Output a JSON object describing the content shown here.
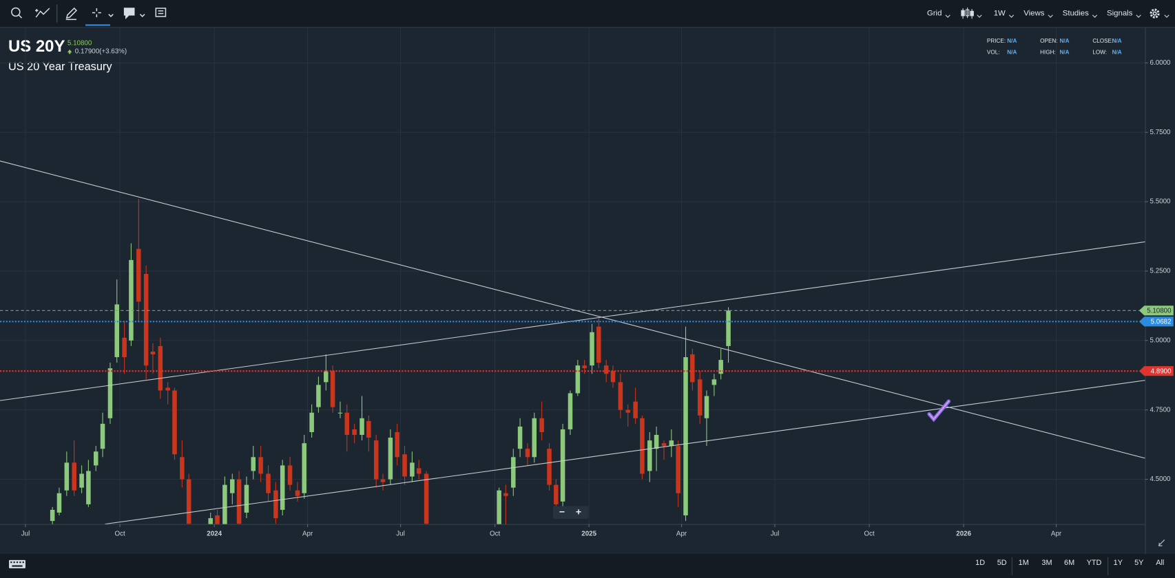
{
  "toolbar": {
    "right": [
      "Grid",
      "1W",
      "Views",
      "Studies",
      "Signals"
    ]
  },
  "header": {
    "symbol": "US 20Y",
    "last": "5.10800",
    "change": "0.17900(+3.63%)",
    "name": "US 20 Year Treasury"
  },
  "info": [
    {
      "label": "PRICE:",
      "value": "N/A"
    },
    {
      "label": "OPEN:",
      "value": "N/A"
    },
    {
      "label": "CLOSE:",
      "value": "N/A"
    },
    {
      "label": "VOL:",
      "value": "N/A"
    },
    {
      "label": "HIGH:",
      "value": "N/A"
    },
    {
      "label": "LOW:",
      "value": "N/A"
    }
  ],
  "zoom": [
    "−",
    "+"
  ],
  "ranges": [
    "1D",
    "5D",
    "1M",
    "3M",
    "6M",
    "YTD",
    "1Y",
    "5Y",
    "All"
  ],
  "chart_data": {
    "type": "candlestick",
    "up_color": "#8cc97c",
    "down_color": "#c9361d",
    "grid": true,
    "xlim": [
      2023.428,
      2026.484
    ],
    "ylim": [
      4.3387,
      6.1268
    ],
    "xticks": [
      {
        "value": 2023.496,
        "label": "Jul"
      },
      {
        "value": 2023.748,
        "label": "Oct"
      },
      {
        "value": 2024.0,
        "label": "2024"
      },
      {
        "value": 2024.249,
        "label": "Apr"
      },
      {
        "value": 2024.497,
        "label": "Jul"
      },
      {
        "value": 2024.749,
        "label": "Oct"
      },
      {
        "value": 2025.0,
        "label": "2025"
      },
      {
        "value": 2025.247,
        "label": "Apr"
      },
      {
        "value": 2025.496,
        "label": "Jul"
      },
      {
        "value": 2025.748,
        "label": "Oct"
      },
      {
        "value": 2026.0,
        "label": "2026"
      },
      {
        "value": 2026.247,
        "label": "Apr"
      }
    ],
    "yticks": [
      {
        "value": 4.5,
        "label": "4.5000"
      },
      {
        "value": 4.75,
        "label": "4.7500"
      },
      {
        "value": 5.0,
        "label": "5.0000"
      },
      {
        "value": 5.25,
        "label": "5.2500"
      },
      {
        "value": 5.5,
        "label": "5.5000"
      },
      {
        "value": 5.75,
        "label": "5.7500"
      },
      {
        "value": 6.0,
        "label": "6.0000"
      }
    ],
    "price_lines": [
      {
        "value": 5.108,
        "label": "5.10800",
        "color": "#8cc97c",
        "style": "dashed"
      },
      {
        "value": 5.0682,
        "label": "5.0682",
        "color": "#2a8be0",
        "style": "dotted"
      },
      {
        "value": 4.89,
        "label": "4.8900",
        "color": "#e0342e",
        "style": "dotted"
      }
    ],
    "x": [
      2023.568,
      2023.586,
      2023.606,
      2023.626,
      2023.646,
      2023.664,
      2023.684,
      2023.702,
      2023.722,
      2023.74,
      2023.76,
      2023.778,
      2023.798,
      2023.818,
      2023.836,
      2023.856,
      2023.876,
      2023.894,
      2023.914,
      2023.932,
      2023.99,
      2024.008,
      2024.028,
      2024.048,
      2024.066,
      2024.086,
      2024.104,
      2024.124,
      2024.144,
      2024.164,
      2024.182,
      2024.202,
      2024.222,
      2024.24,
      2024.26,
      2024.278,
      2024.298,
      2024.316,
      2024.336,
      2024.354,
      2024.374,
      2024.394,
      2024.412,
      2024.432,
      2024.45,
      2024.47,
      2024.488,
      2024.508,
      2024.528,
      2024.546,
      2024.566,
      2024.76,
      2024.778,
      2024.798,
      2024.816,
      2024.836,
      2024.854,
      2024.874,
      2024.894,
      2024.912,
      2024.93,
      2024.95,
      2024.97,
      2024.988,
      2025.008,
      2025.026,
      2025.046,
      2025.064,
      2025.084,
      2025.104,
      2025.124,
      2025.142,
      2025.162,
      2025.18,
      2025.2,
      2025.22,
      2025.238,
      2025.258,
      2025.276,
      2025.296,
      2025.314,
      2025.334,
      2025.352,
      2025.372
    ],
    "open": [
      4.35,
      4.38,
      4.46,
      4.56,
      4.47,
      4.41,
      4.55,
      4.61,
      4.72,
      4.94,
      5.01,
      5.0,
      5.33,
      5.24,
      4.96,
      4.98,
      4.83,
      4.82,
      4.58,
      4.5,
      4.33,
      4.37,
      4.33,
      4.45,
      4.5,
      4.38,
      4.53,
      4.58,
      4.52,
      4.46,
      4.39,
      4.55,
      4.46,
      4.45,
      4.67,
      4.76,
      4.85,
      4.89,
      4.74,
      4.74,
      4.68,
      4.66,
      4.71,
      4.64,
      4.5,
      4.5,
      4.67,
      4.59,
      4.51,
      4.54,
      4.52,
      4.33,
      4.45,
      4.47,
      4.61,
      4.61,
      4.58,
      4.72,
      4.61,
      4.48,
      4.42,
      4.68,
      4.81,
      4.91,
      4.91,
      5.05,
      4.91,
      4.89,
      4.85,
      4.75,
      4.78,
      4.72,
      4.53,
      4.61,
      4.63,
      4.62,
      4.62,
      4.37,
      4.95,
      4.86,
      4.72,
      4.84,
      4.88,
      4.98
    ],
    "high": [
      4.4,
      4.47,
      4.6,
      4.64,
      4.55,
      4.57,
      4.62,
      4.74,
      4.92,
      5.22,
      5.07,
      5.35,
      5.51,
      5.27,
      4.99,
      5.01,
      4.85,
      4.83,
      4.64,
      4.52,
      4.38,
      4.39,
      4.51,
      4.52,
      4.53,
      4.51,
      4.62,
      4.62,
      4.55,
      4.49,
      4.57,
      4.58,
      4.49,
      4.66,
      4.77,
      4.87,
      4.95,
      4.91,
      4.78,
      4.77,
      4.7,
      4.8,
      4.73,
      4.66,
      4.52,
      4.68,
      4.7,
      4.62,
      4.6,
      4.57,
      4.53,
      4.47,
      4.48,
      4.61,
      4.72,
      4.63,
      4.74,
      4.78,
      4.63,
      4.5,
      4.7,
      4.82,
      4.93,
      4.93,
      5.06,
      5.08,
      4.93,
      4.91,
      4.88,
      4.77,
      4.83,
      4.73,
      4.67,
      4.69,
      4.64,
      4.68,
      4.64,
      5.05,
      4.97,
      4.89,
      4.82,
      4.88,
      4.97,
      5.12
    ],
    "low": [
      4.33,
      4.37,
      4.44,
      4.44,
      4.45,
      4.4,
      4.53,
      4.58,
      4.7,
      4.92,
      4.88,
      4.98,
      5.07,
      4.86,
      4.88,
      4.79,
      4.77,
      4.57,
      4.47,
      4.33,
      4.3,
      4.3,
      4.31,
      4.41,
      4.32,
      4.36,
      4.5,
      4.49,
      4.42,
      4.34,
      4.37,
      4.46,
      4.42,
      4.43,
      4.65,
      4.74,
      4.82,
      4.74,
      4.72,
      4.6,
      4.63,
      4.64,
      4.6,
      4.47,
      4.46,
      4.48,
      4.55,
      4.48,
      4.49,
      4.5,
      4.33,
      4.3,
      4.3,
      4.44,
      4.58,
      4.55,
      4.56,
      4.64,
      4.46,
      4.38,
      4.4,
      4.66,
      4.8,
      4.88,
      4.88,
      4.9,
      4.85,
      4.83,
      4.72,
      4.69,
      4.7,
      4.5,
      4.49,
      4.53,
      4.57,
      4.58,
      4.4,
      4.35,
      4.82,
      4.7,
      4.62,
      4.8,
      4.86,
      4.92
    ],
    "close": [
      4.39,
      4.45,
      4.56,
      4.46,
      4.52,
      4.53,
      4.6,
      4.7,
      4.9,
      5.13,
      4.94,
      5.29,
      5.14,
      4.91,
      4.95,
      4.82,
      4.82,
      4.59,
      4.5,
      4.34,
      4.36,
      4.33,
      4.48,
      4.5,
      4.34,
      4.48,
      4.58,
      4.52,
      4.45,
      4.36,
      4.55,
      4.48,
      4.44,
      4.63,
      4.74,
      4.84,
      4.89,
      4.76,
      4.74,
      4.66,
      4.66,
      4.72,
      4.65,
      4.5,
      4.49,
      4.65,
      4.58,
      4.51,
      4.56,
      4.52,
      4.34,
      4.46,
      4.44,
      4.58,
      4.69,
      4.58,
      4.72,
      4.67,
      4.48,
      4.41,
      4.68,
      4.81,
      4.91,
      4.9,
      5.03,
      4.92,
      4.88,
      4.85,
      4.75,
      4.74,
      4.72,
      4.52,
      4.64,
      4.66,
      4.62,
      4.64,
      4.45,
      4.94,
      4.85,
      4.73,
      4.8,
      4.86,
      4.93,
      5.108
    ]
  }
}
